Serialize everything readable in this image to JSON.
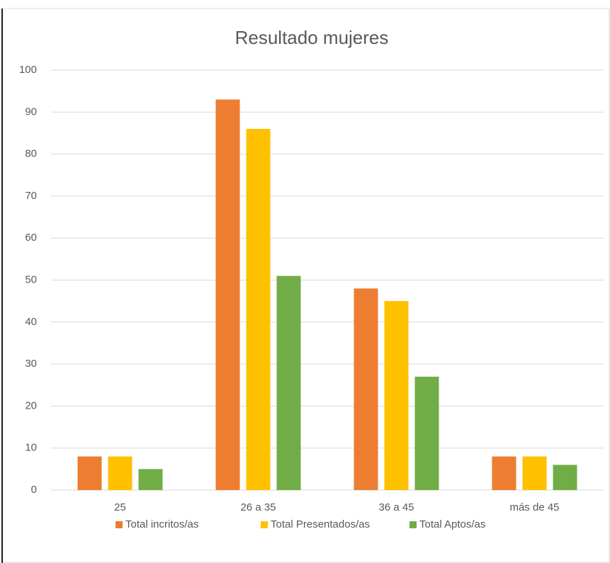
{
  "chart_data": {
    "type": "bar",
    "title": "Resultado mujeres",
    "categories": [
      "25",
      "26 a 35",
      "36 a 45",
      "más de 45"
    ],
    "series": [
      {
        "name": "Total incritos/as",
        "color": "#ED7D31",
        "values": [
          8,
          93,
          48,
          8
        ]
      },
      {
        "name": "Total Presentados/as",
        "color": "#FFC000",
        "values": [
          8,
          86,
          45,
          8
        ]
      },
      {
        "name": "Total Aptos/as",
        "color": "#70AD47",
        "values": [
          5,
          51,
          27,
          6
        ]
      }
    ],
    "ylim": [
      0,
      100
    ],
    "yticks": [
      0,
      10,
      20,
      30,
      40,
      50,
      60,
      70,
      80,
      90,
      100
    ],
    "grid": true,
    "legend": "bottom"
  }
}
